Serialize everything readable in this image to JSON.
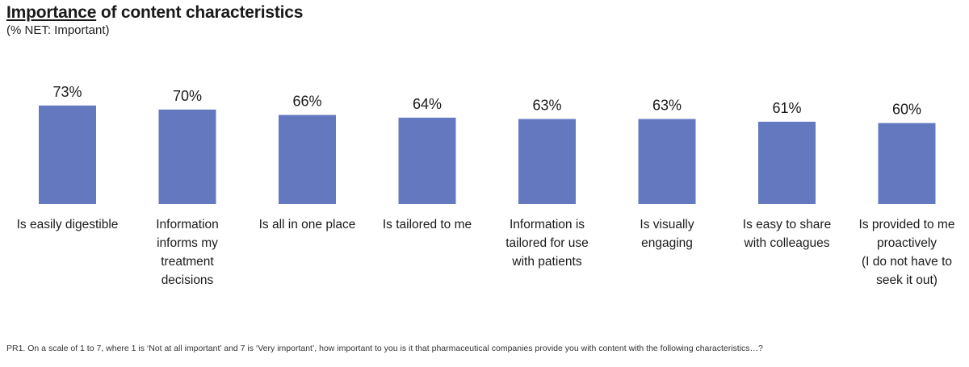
{
  "title_part1": "Importance",
  "title_part2": " of content characteristics",
  "subtitle": "(% NET: Important)",
  "footnote": "PR1. On a scale of 1 to 7, where 1 is ‘Not at all important’ and 7 is ‘Very important’, how important to you is it that pharmaceutical companies provide you with content with the following characteristics…?",
  "chart_data": {
    "type": "bar",
    "title": "Importance of content characteristics",
    "subtitle": "(% NET: Important)",
    "categories": [
      [
        "Is easily digestible"
      ],
      [
        "Information",
        "informs my",
        "treatment",
        "decisions"
      ],
      [
        "Is all in one place"
      ],
      [
        "Is tailored to me"
      ],
      [
        "Information is",
        "tailored for use",
        "with patients"
      ],
      [
        "Is visually",
        "engaging"
      ],
      [
        "Is easy to share",
        "with colleagues"
      ],
      [
        "Is provided to me",
        "proactively",
        "(I do not have to",
        "seek it out)"
      ]
    ],
    "values": [
      73,
      70,
      66,
      64,
      63,
      63,
      61,
      60
    ],
    "value_suffix": "%",
    "bar_color": "#6478c0",
    "grid": false,
    "legend": "none"
  }
}
